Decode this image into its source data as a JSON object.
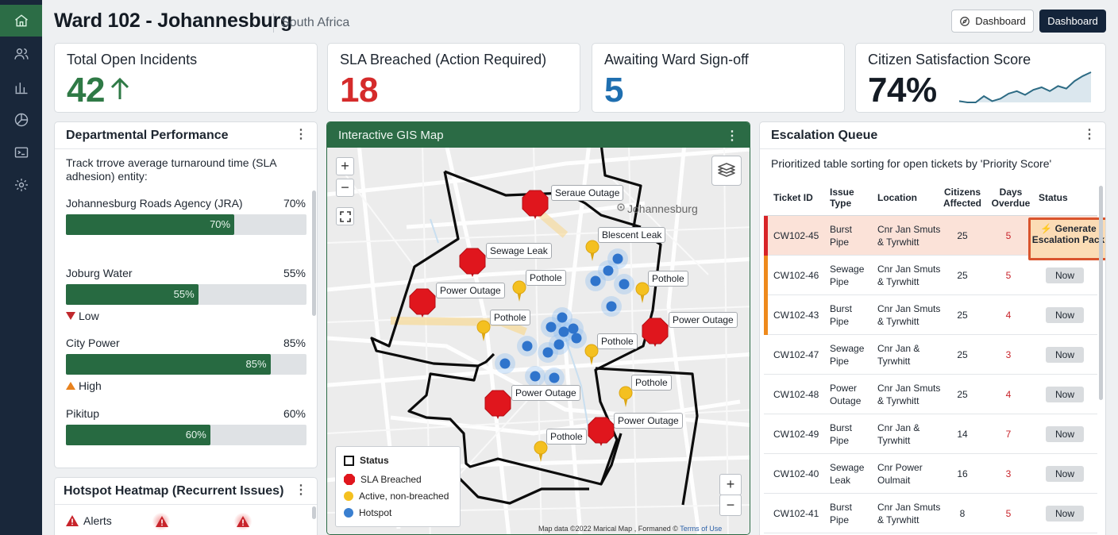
{
  "header": {
    "title": "Ward 102 - Johannesburg",
    "subtitle": "South Africa",
    "btn_outline": "Dashboard",
    "btn_solid": "Dashboard"
  },
  "sidebar": {
    "items": [
      {
        "icon": "home-icon",
        "active": true
      },
      {
        "icon": "users-icon"
      },
      {
        "icon": "bar-chart-icon"
      },
      {
        "icon": "pie-chart-icon"
      },
      {
        "icon": "terminal-icon"
      },
      {
        "icon": "settings-icon"
      }
    ]
  },
  "kpis": [
    {
      "label": "Total Open Incidents",
      "value": "42",
      "color": "#2f7a46",
      "trend": "up"
    },
    {
      "label": "SLA Breached (Action Required)",
      "value": "18",
      "color": "#d52b2b"
    },
    {
      "label": "Awaiting Ward Sign-off",
      "value": "5",
      "color": "#1f6fb0"
    },
    {
      "label": "Citizen Satisfaction Score",
      "value": "74%",
      "color": "#141b24",
      "sparkline": [
        10,
        9,
        9,
        14,
        10,
        12,
        16,
        18,
        15,
        19,
        21,
        18,
        22,
        20,
        26,
        30,
        33
      ]
    }
  ],
  "perf": {
    "title": "Departmental Performance",
    "desc": "Track trrove average turnaround time (SLA adhesion) entity:",
    "departments": [
      {
        "name": "Johannesburg Roads Agency (JRA)",
        "value": "70%",
        "pct": 70
      },
      {
        "name": "Joburg Water",
        "value": "55%",
        "pct": 55,
        "tag": "Low",
        "tag_color": "#c0282d"
      },
      {
        "name": "City Power",
        "value": "85%",
        "pct": 85,
        "tag": "High",
        "tag_color": "#e8821e"
      },
      {
        "name": "Pikitup",
        "value": "60%",
        "pct": 60
      }
    ]
  },
  "hotspot": {
    "title": "Hotspot Heatmap (Recurrent Issues)",
    "alerts_label": "Alerts"
  },
  "map": {
    "title": "Interactive GIS Map",
    "place_label": "Johannesburg",
    "markers": [
      {
        "type": "sla",
        "label": "Seraue Outage"
      },
      {
        "type": "sla",
        "label": "Sewage Leak"
      },
      {
        "type": "sla",
        "label": "Power Outage"
      },
      {
        "type": "sla",
        "label": "Power Outage"
      },
      {
        "type": "sla",
        "label": "Power Outage"
      },
      {
        "type": "sla",
        "label": "Power Outage"
      },
      {
        "type": "active",
        "label": "Blescent Leak"
      },
      {
        "type": "active",
        "label": "Pothole"
      },
      {
        "type": "active",
        "label": "Pothole"
      },
      {
        "type": "active",
        "label": "Pothole"
      },
      {
        "type": "active",
        "label": "Pothole"
      },
      {
        "type": "active",
        "label": "Pothole"
      },
      {
        "type": "active",
        "label": "Pothole"
      }
    ],
    "legend": {
      "title": "Status",
      "items": [
        {
          "label": "SLA Breached",
          "color": "#e0161d"
        },
        {
          "label": "Active, non-breached",
          "color": "#f4c020"
        },
        {
          "label": "Hotspot",
          "color": "#3a7fd0"
        }
      ]
    },
    "attribution": "Map data ©2022 Marical Map , Formaned ©",
    "attribution_link": "Terms of Use"
  },
  "queue": {
    "title": "Escalation Queue",
    "desc": "Prioritized table sorting for open tickets by 'Priority Score'",
    "columns": {
      "ticket": "Ticket ID",
      "issue": "Issue Type",
      "location": "Location",
      "citizens": "Citizens Affected",
      "days": "Days Overdue",
      "status": "Status"
    },
    "rows": [
      {
        "id": "CW102-45",
        "issue": "Burst Pipe",
        "location": "Cnr Jan Smuts & Tyrwhitt",
        "citizens": "25",
        "days": "5",
        "status": "Generate Escalation Pack",
        "accent": "#d82428",
        "highlight": true
      },
      {
        "id": "CW102-46",
        "issue": "Sewage Pipe",
        "location": "Cnr Jan Smuts & Tyrwhitt",
        "citizens": "25",
        "days": "5",
        "status": "Now",
        "accent": "#ee8a1c"
      },
      {
        "id": "CW102-43",
        "issue": "Burst Pipe",
        "location": "Cnr Jan Smuts & Tyrwhitt",
        "citizens": "25",
        "days": "4",
        "status": "Now",
        "accent": "#ee8a1c"
      },
      {
        "id": "CW102-47",
        "issue": "Sewage Pipe",
        "location": "Cnr Jan & Tyrwhitt",
        "citizens": "25",
        "days": "3",
        "status": "Now"
      },
      {
        "id": "CW102-48",
        "issue": "Power Outage",
        "location": "Cnr Jan Smuts & Tyrwhitt",
        "citizens": "25",
        "days": "4",
        "status": "Now"
      },
      {
        "id": "CW102-49",
        "issue": "Burst Pipe",
        "location": "Cnr Jan & Tyrwhitt",
        "citizens": "14",
        "days": "7",
        "status": "Now"
      },
      {
        "id": "CW102-40",
        "issue": "Sewage Leak",
        "location": "Cnr Power Oulmait",
        "citizens": "16",
        "days": "3",
        "status": "Now"
      },
      {
        "id": "CW102-41",
        "issue": "Burst Pipe",
        "location": "Cnr Jan Smuts & Tyrwhitt",
        "citizens": "8",
        "days": "5",
        "status": "Now"
      }
    ]
  }
}
